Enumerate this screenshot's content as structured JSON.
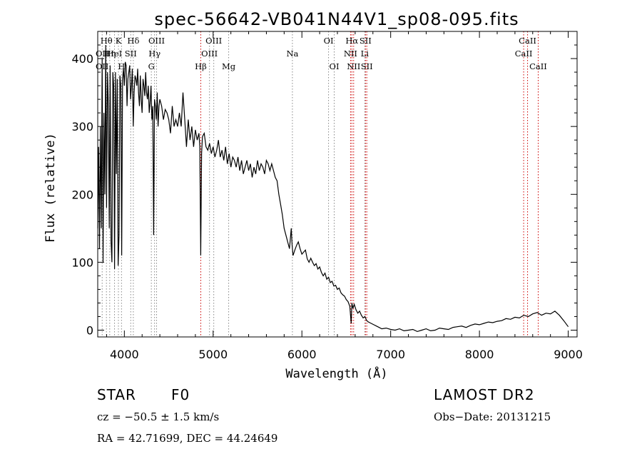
{
  "chart_data": {
    "type": "line",
    "title": "spec-56642-VB041N44V1_sp08-095.fits",
    "xlabel": "Wavelength (Å)",
    "ylabel": "Flux (relative)",
    "xlim": [
      3700,
      9100
    ],
    "ylim": [
      -10,
      440
    ],
    "xticks": [
      4000,
      5000,
      6000,
      7000,
      8000,
      9000
    ],
    "yticks": [
      0,
      100,
      200,
      300,
      400
    ],
    "grid": false,
    "series": [
      {
        "x": [
          3700,
          3710,
          3720,
          3730,
          3740,
          3750,
          3760,
          3770,
          3780,
          3790,
          3800,
          3810,
          3820,
          3830,
          3840,
          3850,
          3860,
          3870,
          3880,
          3890,
          3900,
          3910,
          3920,
          3930,
          3940,
          3950,
          3960,
          3970,
          3980,
          3990,
          4000,
          4010,
          4020,
          4030,
          4040,
          4050,
          4060,
          4070,
          4080,
          4090,
          4100,
          4110,
          4120,
          4130,
          4140,
          4150,
          4160,
          4170,
          4180,
          4190,
          4200,
          4210,
          4220,
          4230,
          4240,
          4250,
          4260,
          4270,
          4280,
          4290,
          4300,
          4310,
          4320,
          4330,
          4340,
          4350,
          4360,
          4370,
          4380,
          4390,
          4400,
          4420,
          4440,
          4460,
          4480,
          4500,
          4520,
          4540,
          4560,
          4580,
          4600,
          4620,
          4640,
          4660,
          4680,
          4700,
          4720,
          4740,
          4760,
          4780,
          4800,
          4820,
          4840,
          4850,
          4860,
          4870,
          4880,
          4900,
          4920,
          4940,
          4960,
          4980,
          5000,
          5020,
          5040,
          5060,
          5080,
          5100,
          5120,
          5140,
          5160,
          5180,
          5200,
          5220,
          5240,
          5260,
          5280,
          5300,
          5320,
          5340,
          5360,
          5380,
          5400,
          5420,
          5440,
          5460,
          5480,
          5500,
          5520,
          5540,
          5560,
          5580,
          5600,
          5620,
          5640,
          5660,
          5680,
          5700,
          5720,
          5740,
          5760,
          5780,
          5800,
          5820,
          5840,
          5860,
          5880,
          5890,
          5900,
          5920,
          5940,
          5960,
          5980,
          6000,
          6020,
          6040,
          6060,
          6080,
          6100,
          6120,
          6140,
          6160,
          6180,
          6200,
          6220,
          6240,
          6260,
          6280,
          6300,
          6320,
          6340,
          6360,
          6380,
          6400,
          6420,
          6440,
          6460,
          6480,
          6500,
          6520,
          6540,
          6555,
          6563,
          6575,
          6590,
          6610,
          6630,
          6650,
          6670,
          6690,
          6710,
          6730,
          6750,
          6780,
          6810,
          6840,
          6870,
          6900,
          6950,
          7000,
          7050,
          7100,
          7150,
          7200,
          7250,
          7300,
          7350,
          7400,
          7450,
          7500,
          7550,
          7600,
          7650,
          7700,
          7750,
          7800,
          7850,
          7900,
          7950,
          8000,
          8050,
          8100,
          8150,
          8200,
          8250,
          8300,
          8350,
          8400,
          8450,
          8500,
          8550,
          8600,
          8650,
          8700,
          8750,
          8800,
          8850,
          8900,
          8950,
          9000
        ],
        "values": [
          150,
          270,
          120,
          300,
          150,
          400,
          100,
          320,
          200,
          420,
          180,
          380,
          330,
          150,
          390,
          130,
          100,
          380,
          360,
          90,
          380,
          230,
          370,
          95,
          140,
          375,
          360,
          110,
          370,
          385,
          360,
          395,
          390,
          330,
          370,
          380,
          390,
          340,
          360,
          385,
          300,
          350,
          375,
          370,
          360,
          385,
          350,
          330,
          375,
          340,
          320,
          370,
          360,
          345,
          380,
          350,
          340,
          360,
          320,
          335,
          360,
          310,
          330,
          140,
          340,
          330,
          310,
          350,
          300,
          330,
          340,
          330,
          310,
          325,
          320,
          310,
          290,
          330,
          300,
          310,
          300,
          320,
          300,
          350,
          310,
          270,
          310,
          280,
          300,
          270,
          295,
          280,
          290,
          270,
          110,
          260,
          285,
          290,
          270,
          265,
          275,
          260,
          270,
          255,
          265,
          280,
          255,
          265,
          250,
          270,
          245,
          260,
          240,
          255,
          250,
          240,
          255,
          235,
          250,
          230,
          240,
          250,
          235,
          245,
          225,
          240,
          230,
          250,
          235,
          245,
          240,
          230,
          250,
          245,
          235,
          245,
          235,
          225,
          220,
          200,
          185,
          170,
          150,
          140,
          130,
          120,
          150,
          125,
          110,
          118,
          125,
          130,
          120,
          112,
          115,
          118,
          105,
          100,
          106,
          100,
          95,
          98,
          90,
          93,
          85,
          80,
          84,
          75,
          78,
          70,
          72,
          65,
          66,
          60,
          62,
          55,
          52,
          50,
          45,
          42,
          35,
          10,
          40,
          32,
          38,
          30,
          25,
          28,
          22,
          18,
          20,
          14,
          12,
          10,
          8,
          6,
          4,
          2,
          3,
          1,
          0,
          2,
          -1,
          0,
          1,
          -2,
          0,
          2,
          -1,
          0,
          3,
          2,
          1,
          4,
          5,
          6,
          4,
          7,
          9,
          8,
          10,
          12,
          11,
          13,
          14,
          17,
          16,
          19,
          18,
          22,
          20,
          24,
          26,
          22,
          25,
          24,
          28,
          22,
          14,
          5
        ]
      }
    ],
    "lines": [
      {
        "x": 3750,
        "rows": [
          1,
          2
        ],
        "labels": [
          "OII"
        ],
        "color": "#888888"
      },
      {
        "x": 3798,
        "rows": [
          0
        ],
        "labels": [
          "Hθ"
        ],
        "color": "#888888"
      },
      {
        "x": 3835,
        "rows": [
          1
        ],
        "labels": [
          "Hη"
        ],
        "color": "#888888"
      },
      {
        "x": 3889,
        "rows": [
          1
        ],
        "labels": [
          "HeI"
        ],
        "color": "#888888"
      },
      {
        "x": 3933,
        "rows": [
          0
        ],
        "labels": [
          "K"
        ],
        "color": "#888888"
      },
      {
        "x": 3968,
        "rows": [
          2
        ],
        "labels": [
          "H"
        ],
        "color": "#888888"
      },
      {
        "x": 4072,
        "rows": [
          1
        ],
        "labels": [
          "SII"
        ],
        "color": "#888888"
      },
      {
        "x": 4101,
        "rows": [
          0
        ],
        "labels": [
          "Hδ"
        ],
        "color": "#888888"
      },
      {
        "x": 4304,
        "rows": [
          2
        ],
        "labels": [
          "G"
        ],
        "color": "#888888"
      },
      {
        "x": 4340,
        "rows": [
          1
        ],
        "labels": [
          "Hγ"
        ],
        "color": "#888888"
      },
      {
        "x": 4363,
        "rows": [
          0
        ],
        "labels": [
          "OIII"
        ],
        "color": "#888888"
      },
      {
        "x": 4861,
        "rows": [
          2
        ],
        "labels": [
          "Hβ"
        ],
        "color": "#cc0000"
      },
      {
        "x": 4959,
        "rows": [
          1
        ],
        "labels": [
          "OIII"
        ],
        "color": "#888888"
      },
      {
        "x": 5007,
        "rows": [
          0
        ],
        "labels": [
          "OIII"
        ],
        "color": "#888888"
      },
      {
        "x": 5175,
        "rows": [
          2
        ],
        "labels": [
          "Mg"
        ],
        "color": "#888888"
      },
      {
        "x": 5893,
        "rows": [
          1
        ],
        "labels": [
          "Na"
        ],
        "color": "#888888"
      },
      {
        "x": 6300,
        "rows": [
          0
        ],
        "labels": [
          "OI"
        ],
        "color": "#888888"
      },
      {
        "x": 6364,
        "rows": [
          2
        ],
        "labels": [
          "OI"
        ],
        "color": "#888888"
      },
      {
        "x": 6548,
        "rows": [
          1
        ],
        "labels": [
          "NII"
        ],
        "color": "#cc0000"
      },
      {
        "x": 6563,
        "rows": [
          0
        ],
        "labels": [
          "Hα"
        ],
        "color": "#cc0000"
      },
      {
        "x": 6583,
        "rows": [
          2
        ],
        "labels": [
          "NII"
        ],
        "color": "#cc0000"
      },
      {
        "x": 6708,
        "rows": [
          1
        ],
        "labels": [
          "Li"
        ],
        "color": "#888888"
      },
      {
        "x": 6716,
        "rows": [
          0
        ],
        "labels": [
          "SII"
        ],
        "color": "#cc0000"
      },
      {
        "x": 6731,
        "rows": [
          2
        ],
        "labels": [
          "SII"
        ],
        "color": "#cc0000"
      },
      {
        "x": 8498,
        "rows": [
          1
        ],
        "labels": [
          "CaII"
        ],
        "color": "#cc0000"
      },
      {
        "x": 8542,
        "rows": [
          0
        ],
        "labels": [
          "CaII"
        ],
        "color": "#cc0000"
      },
      {
        "x": 8662,
        "rows": [
          2
        ],
        "labels": [
          "CaII"
        ],
        "color": "#cc0000"
      }
    ]
  },
  "info": {
    "class": "STAR",
    "subclass": "F0",
    "survey": "LAMOST DR2",
    "cz": "cz = −50.5 ± 1.5 km/s",
    "obs_date": "Obs−Date: 20131215",
    "radec": "RA =  42.71699, DEC =  44.24649"
  }
}
